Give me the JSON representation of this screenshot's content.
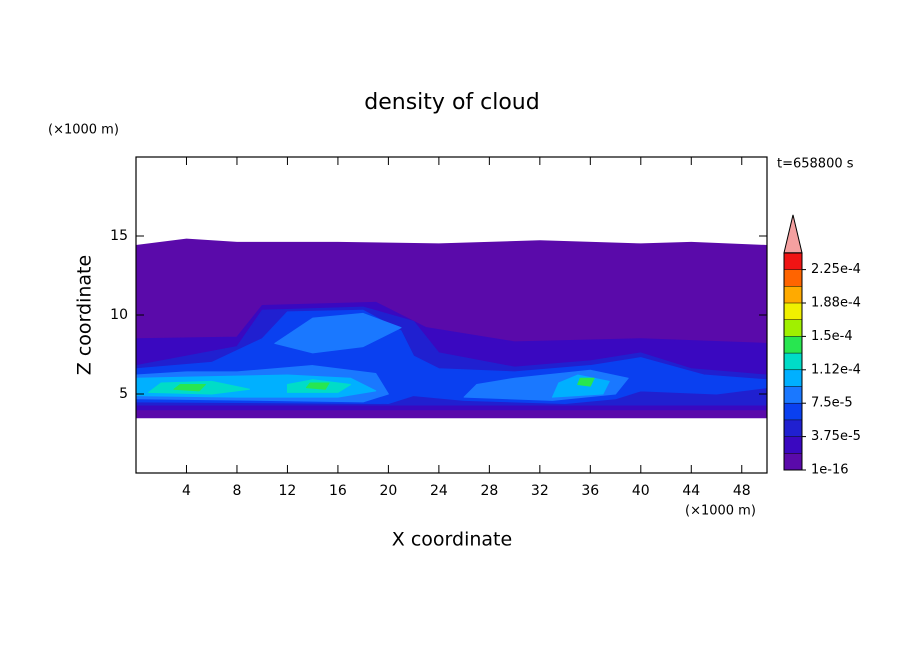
{
  "chart_data": {
    "type": "contour",
    "title": "density of cloud",
    "x_label": "X coordinate",
    "y_label": "Z coordinate",
    "x_unit": "(×1000 m)",
    "y_unit": "(×1000 m)",
    "annotation": "t=658800 s",
    "xlim": [
      0,
      50
    ],
    "ylim": [
      0,
      20
    ],
    "xticks": [
      4,
      8,
      12,
      16,
      20,
      24,
      28,
      32,
      36,
      40,
      44,
      48
    ],
    "yticks": [
      5,
      10,
      15
    ],
    "colorbar": {
      "levels": [
        1e-16,
        1.875e-05,
        3.75e-05,
        5.625e-05,
        7.5e-05,
        9.375e-05,
        0.0001125,
        0.00013125,
        0.00015,
        0.00016875,
        0.0001875,
        0.00020625,
        0.000225,
        0.00024375
      ],
      "ticks": [
        {
          "value": 1e-16,
          "label": "1e-16"
        },
        {
          "value": 3.75e-05,
          "label": "3.75e-5"
        },
        {
          "value": 7.5e-05,
          "label": "7.5e-5"
        },
        {
          "value": 0.0001125,
          "label": "1.12e-4"
        },
        {
          "value": 0.00015,
          "label": "1.5e-4"
        },
        {
          "value": 0.0001875,
          "label": "1.88e-4"
        },
        {
          "value": 0.000225,
          "label": "2.25e-4"
        }
      ],
      "colors": [
        "#5a0aaa",
        "#3a08c0",
        "#2020d0",
        "#0a40f0",
        "#1a78ff",
        "#00b0ff",
        "#00dcc8",
        "#28e650",
        "#a0f000",
        "#f0f000",
        "#ffaa00",
        "#ff6400",
        "#f01414"
      ],
      "over_color": "#f4a0a0"
    },
    "contours": [
      {
        "level": 1e-16,
        "points": [
          [
            0,
            3.5
          ],
          [
            50,
            3.5
          ],
          [
            50,
            14.4
          ],
          [
            44,
            14.6
          ],
          [
            40,
            14.5
          ],
          [
            32,
            14.7
          ],
          [
            24,
            14.5
          ],
          [
            16,
            14.6
          ],
          [
            8,
            14.6
          ],
          [
            4,
            14.8
          ],
          [
            0,
            14.4
          ]
        ]
      },
      {
        "level": 1.875e-05,
        "points": [
          [
            0,
            4
          ],
          [
            50,
            4
          ],
          [
            50,
            8.2
          ],
          [
            40,
            8.5
          ],
          [
            30,
            8.3
          ],
          [
            23,
            9.2
          ],
          [
            19,
            10.8
          ],
          [
            10,
            10.6
          ],
          [
            8,
            8.6
          ],
          [
            0,
            8.5
          ]
        ]
      },
      {
        "level": 3.75e-05,
        "points": [
          [
            0,
            4.3
          ],
          [
            50,
            4.3
          ],
          [
            50,
            6.2
          ],
          [
            44,
            6.6
          ],
          [
            40,
            7.6
          ],
          [
            36,
            7.1
          ],
          [
            30,
            6.7
          ],
          [
            24,
            7.6
          ],
          [
            22,
            9.6
          ],
          [
            18,
            10.5
          ],
          [
            10,
            10.3
          ],
          [
            8,
            8
          ],
          [
            0,
            6.8
          ]
        ]
      },
      {
        "level": 5.625e-05,
        "points": [
          [
            0,
            4.5
          ],
          [
            20,
            4.4
          ],
          [
            22,
            4.9
          ],
          [
            26,
            4.6
          ],
          [
            34,
            4.4
          ],
          [
            38,
            4.7
          ],
          [
            40,
            5.2
          ],
          [
            46,
            5
          ],
          [
            50,
            5.4
          ],
          [
            50,
            5.9
          ],
          [
            45,
            6.2
          ],
          [
            40,
            7.3
          ],
          [
            36,
            6.8
          ],
          [
            30,
            6.4
          ],
          [
            24,
            6.6
          ],
          [
            22,
            7.4
          ],
          [
            21,
            9
          ],
          [
            18,
            10.3
          ],
          [
            12,
            10.2
          ],
          [
            10,
            8.5
          ],
          [
            6,
            7
          ],
          [
            0,
            6.6
          ]
        ]
      },
      {
        "level": 7.5e-05,
        "points": [
          [
            0,
            4.7
          ],
          [
            10,
            4.6
          ],
          [
            18,
            4.5
          ],
          [
            20,
            5
          ],
          [
            19,
            6.3
          ],
          [
            14,
            6.8
          ],
          [
            8,
            6.4
          ],
          [
            4,
            6.4
          ],
          [
            0,
            6.2
          ]
        ]
      },
      {
        "level": 7.5e-05,
        "points": [
          [
            11,
            8.2
          ],
          [
            14,
            9.8
          ],
          [
            18,
            10.1
          ],
          [
            21,
            9.2
          ],
          [
            18,
            8
          ],
          [
            14,
            7.6
          ]
        ]
      },
      {
        "level": 7.5e-05,
        "points": [
          [
            26,
            4.8
          ],
          [
            33,
            4.6
          ],
          [
            38,
            5
          ],
          [
            39,
            6
          ],
          [
            36,
            6.5
          ],
          [
            30,
            6
          ],
          [
            27,
            5.6
          ]
        ]
      },
      {
        "level": 9.375e-05,
        "points": [
          [
            0,
            4.9
          ],
          [
            8,
            4.8
          ],
          [
            16,
            4.8
          ],
          [
            19,
            5.2
          ],
          [
            17,
            6
          ],
          [
            12,
            6.2
          ],
          [
            6,
            6.1
          ],
          [
            0,
            6
          ]
        ]
      },
      {
        "level": 9.375e-05,
        "points": [
          [
            33,
            4.8
          ],
          [
            37,
            5
          ],
          [
            37.5,
            5.8
          ],
          [
            35,
            6.2
          ],
          [
            33.5,
            5.7
          ]
        ]
      },
      {
        "level": 0.0001125,
        "points": [
          [
            1,
            5.1
          ],
          [
            6,
            5
          ],
          [
            9,
            5.3
          ],
          [
            6,
            5.8
          ],
          [
            2,
            5.7
          ]
        ]
      },
      {
        "level": 0.0001125,
        "points": [
          [
            12,
            5.1
          ],
          [
            16,
            5.1
          ],
          [
            17,
            5.6
          ],
          [
            14,
            5.9
          ],
          [
            12,
            5.6
          ]
        ]
      },
      {
        "level": 0.00013125,
        "points": [
          [
            3,
            5.3
          ],
          [
            5,
            5.2
          ],
          [
            5.5,
            5.6
          ],
          [
            3.5,
            5.6
          ]
        ]
      },
      {
        "level": 0.00013125,
        "points": [
          [
            13.5,
            5.4
          ],
          [
            15,
            5.3
          ],
          [
            15.3,
            5.7
          ],
          [
            13.8,
            5.7
          ]
        ]
      },
      {
        "level": 0.00013125,
        "points": [
          [
            35,
            5.6
          ],
          [
            36,
            5.5
          ],
          [
            36.3,
            6
          ],
          [
            35.2,
            6
          ]
        ]
      }
    ]
  }
}
